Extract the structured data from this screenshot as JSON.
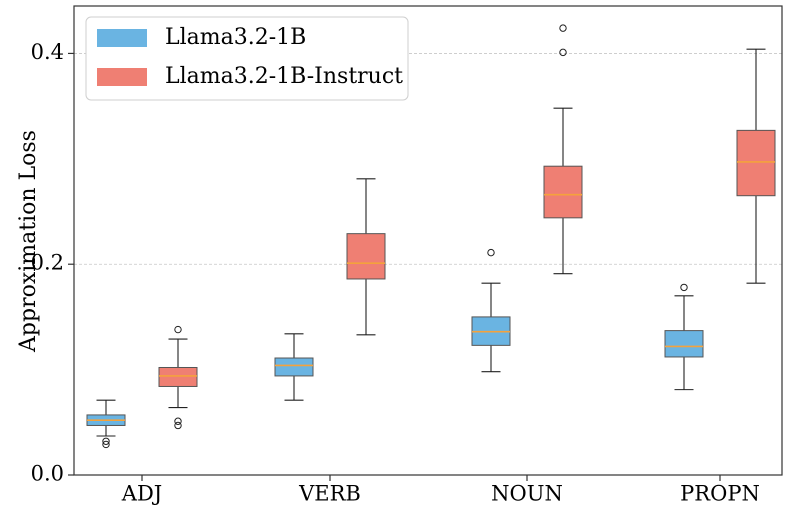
{
  "chart_data": {
    "type": "boxplot",
    "title": "",
    "xlabel": "",
    "ylabel": "Approximation Loss",
    "ylim": [
      0.0,
      0.445
    ],
    "yticks": [
      0.0,
      0.2,
      0.4
    ],
    "ytick_labels": [
      "0.0",
      "0.2",
      "0.4"
    ],
    "grid": "y-dashed",
    "legend_position": "top-left",
    "categories": [
      "ADJ",
      "VERB",
      "NOUN",
      "PROPN"
    ],
    "series": [
      {
        "name": "Llama3.2-1B",
        "color": "#6ab4e2",
        "boxes": [
          {
            "whisker_low": 0.037,
            "q1": 0.047,
            "median": 0.052,
            "q3": 0.057,
            "whisker_high": 0.071,
            "outliers": [
              0.029,
              0.032
            ]
          },
          {
            "whisker_low": 0.071,
            "q1": 0.094,
            "median": 0.104,
            "q3": 0.111,
            "whisker_high": 0.134,
            "outliers": []
          },
          {
            "whisker_low": 0.098,
            "q1": 0.123,
            "median": 0.136,
            "q3": 0.15,
            "whisker_high": 0.182,
            "outliers": [
              0.211
            ]
          },
          {
            "whisker_low": 0.081,
            "q1": 0.112,
            "median": 0.122,
            "q3": 0.137,
            "whisker_high": 0.17,
            "outliers": [
              0.178
            ]
          }
        ]
      },
      {
        "name": "Llama3.2-1B-Instruct",
        "color": "#ef7f73",
        "boxes": [
          {
            "whisker_low": 0.064,
            "q1": 0.084,
            "median": 0.094,
            "q3": 0.102,
            "whisker_high": 0.129,
            "outliers": [
              0.047,
              0.051,
              0.138
            ]
          },
          {
            "whisker_low": 0.133,
            "q1": 0.186,
            "median": 0.201,
            "q3": 0.229,
            "whisker_high": 0.281,
            "outliers": []
          },
          {
            "whisker_low": 0.191,
            "q1": 0.244,
            "median": 0.266,
            "q3": 0.293,
            "whisker_high": 0.348,
            "outliers": [
              0.401,
              0.424
            ]
          },
          {
            "whisker_low": 0.182,
            "q1": 0.265,
            "median": 0.297,
            "q3": 0.327,
            "whisker_high": 0.404,
            "outliers": []
          }
        ]
      }
    ],
    "median_color": "#f4a23c"
  }
}
